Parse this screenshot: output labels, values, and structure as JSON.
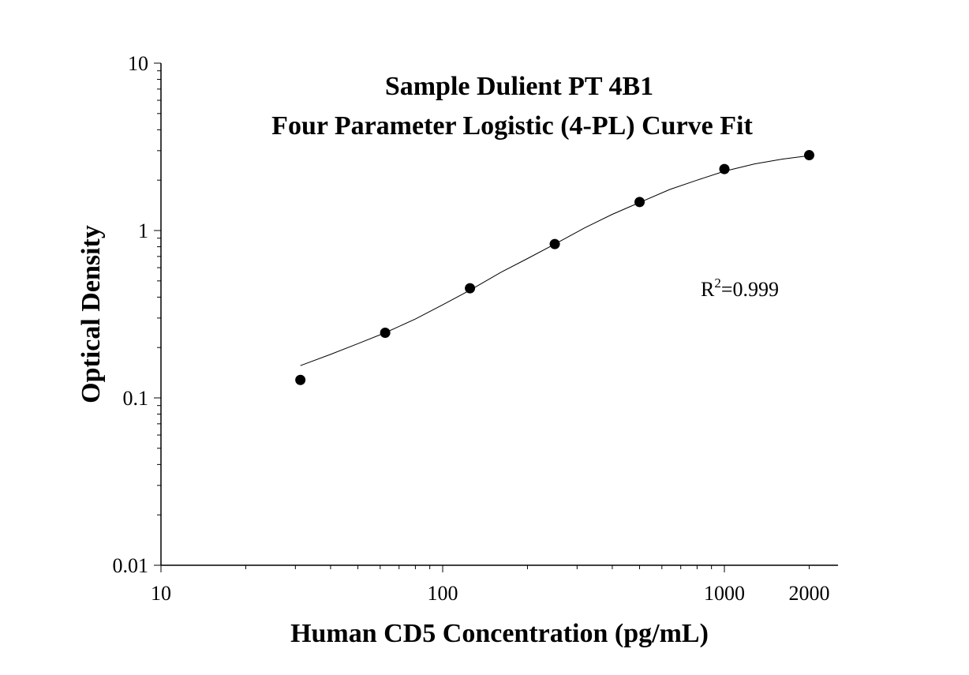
{
  "chart_data": {
    "type": "scatter",
    "title": [
      "Sample Dulient PT 4B1",
      "Four Parameter Logistic (4-PL) Curve Fit"
    ],
    "xlabel": "Human CD5 Concentration (pg/mL)",
    "ylabel": "Optical Density",
    "x_scale": "log",
    "y_scale": "log",
    "xlim": [
      10,
      2500
    ],
    "ylim": [
      0.01,
      10
    ],
    "x_ticks": [
      10,
      100,
      1000,
      2000
    ],
    "x_tick_labels": [
      "10",
      "100",
      "1000",
      "2000"
    ],
    "y_ticks": [
      0.01,
      0.1,
      1,
      10
    ],
    "y_tick_labels": [
      "0.01",
      "0.1",
      "1",
      "10"
    ],
    "grid": false,
    "annotation": {
      "base": "R",
      "sup": "2",
      "rest": "=0.999"
    },
    "series": [
      {
        "x": [
          31.25,
          62.5,
          125,
          250,
          500,
          1000,
          2000
        ],
        "y": [
          0.128,
          0.245,
          0.452,
          0.83,
          1.48,
          2.33,
          2.82
        ]
      }
    ],
    "fit_curve": {
      "x": [
        31.25,
        40,
        50,
        62.5,
        80,
        100,
        125,
        160,
        200,
        250,
        320,
        400,
        500,
        640,
        800,
        1000,
        1280,
        1600,
        2000
      ],
      "y": [
        0.156,
        0.182,
        0.211,
        0.245,
        0.296,
        0.36,
        0.44,
        0.56,
        0.68,
        0.83,
        1.04,
        1.25,
        1.47,
        1.76,
        2.0,
        2.26,
        2.5,
        2.67,
        2.8
      ]
    },
    "colors": {
      "points": "#000000",
      "curve": "#000000",
      "axis": "#000000"
    }
  }
}
